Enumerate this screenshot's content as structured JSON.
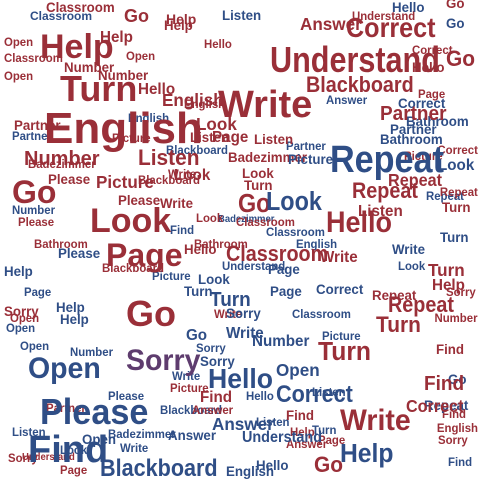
{
  "colors": {
    "red": "#9a2f38",
    "blue": "#2f4e86",
    "purple": "#5e3c6e",
    "background": "#ffffff"
  },
  "vocabulary": [
    "Help",
    "Go",
    "Turn",
    "English",
    "Write",
    "Understand",
    "Correct",
    "Repeat",
    "Number",
    "Listen",
    "Look",
    "Page",
    "Hello",
    "Classroom",
    "Picture",
    "Please",
    "Sorry",
    "Open",
    "Find",
    "Blackboard",
    "Answer",
    "Partner",
    "Bathroom",
    "Badezimmer"
  ],
  "words": [
    {
      "text": "English",
      "color": "red"
    },
    {
      "text": "Understand",
      "color": "red"
    },
    {
      "text": "Repeat",
      "color": "blue"
    },
    {
      "text": "Turn",
      "color": "red"
    },
    {
      "text": "Write",
      "color": "red"
    },
    {
      "text": "Help",
      "color": "red"
    },
    {
      "text": "Correct",
      "color": "red"
    },
    {
      "text": "Number",
      "color": "red"
    },
    {
      "text": "Go",
      "color": "red"
    },
    {
      "text": "Look",
      "color": "red"
    },
    {
      "text": "Page",
      "color": "red"
    },
    {
      "text": "Hello",
      "color": "red"
    },
    {
      "text": "Classroom",
      "color": "red"
    },
    {
      "text": "Go",
      "color": "red"
    },
    {
      "text": "Sorry",
      "color": "purple"
    },
    {
      "text": "Please",
      "color": "blue"
    },
    {
      "text": "Open",
      "color": "blue"
    },
    {
      "text": "Find",
      "color": "blue"
    },
    {
      "text": "Blackboard",
      "color": "blue"
    },
    {
      "text": "Write",
      "color": "red"
    },
    {
      "text": "Hello",
      "color": "blue"
    },
    {
      "text": "Turn",
      "color": "red"
    },
    {
      "text": "Correct",
      "color": "blue"
    },
    {
      "text": "Listen",
      "color": "red"
    },
    {
      "text": "Picture",
      "color": "red"
    },
    {
      "text": "Answer",
      "color": "blue"
    },
    {
      "text": "Understand",
      "color": "blue"
    },
    {
      "text": "Help",
      "color": "blue"
    },
    {
      "text": "Go",
      "color": "red"
    },
    {
      "text": "Partner",
      "color": "red"
    },
    {
      "text": "Blackboard",
      "color": "red"
    },
    {
      "text": "Look",
      "color": "blue"
    },
    {
      "text": "Repeat",
      "color": "red"
    },
    {
      "text": "Hello",
      "color": "red"
    },
    {
      "text": "Classroom",
      "color": "blue"
    },
    {
      "text": "Turn",
      "color": "blue"
    },
    {
      "text": "Open",
      "color": "blue"
    },
    {
      "text": "Find",
      "color": "red"
    },
    {
      "text": "Write",
      "color": "blue"
    },
    {
      "text": "Help",
      "color": "red"
    },
    {
      "text": "Repeat",
      "color": "red"
    },
    {
      "text": "Look",
      "color": "red"
    },
    {
      "text": "Page",
      "color": "red"
    },
    {
      "text": "Turn",
      "color": "red"
    },
    {
      "text": "Listen",
      "color": "red"
    },
    {
      "text": "Write",
      "color": "red"
    },
    {
      "text": "Number",
      "color": "red"
    },
    {
      "text": "Picture",
      "color": "blue"
    },
    {
      "text": "Bathroom",
      "color": "blue"
    },
    {
      "text": "Partner",
      "color": "blue"
    },
    {
      "text": "English",
      "color": "red"
    },
    {
      "text": "Please",
      "color": "red"
    },
    {
      "text": "Sorry",
      "color": "red"
    },
    {
      "text": "Open",
      "color": "red"
    },
    {
      "text": "Help",
      "color": "red"
    },
    {
      "text": "Correct",
      "color": "blue"
    },
    {
      "text": "Answer",
      "color": "red"
    },
    {
      "text": "Classroom",
      "color": "red"
    },
    {
      "text": "Badezimmer",
      "color": "red"
    },
    {
      "text": "Blackboard",
      "color": "red"
    },
    {
      "text": "Listen",
      "color": "blue"
    },
    {
      "text": "Hello",
      "color": "blue"
    },
    {
      "text": "Look",
      "color": "blue"
    },
    {
      "text": "Go",
      "color": "blue"
    },
    {
      "text": "Page",
      "color": "blue"
    },
    {
      "text": "Sorry",
      "color": "blue"
    },
    {
      "text": "Open",
      "color": "blue"
    },
    {
      "text": "Picture",
      "color": "blue"
    },
    {
      "text": "Number",
      "color": "blue"
    },
    {
      "text": "Find",
      "color": "red"
    },
    {
      "text": "Turn",
      "color": "red"
    },
    {
      "text": "Repeat",
      "color": "red"
    },
    {
      "text": "Help",
      "color": "red"
    },
    {
      "text": "Write",
      "color": "blue"
    },
    {
      "text": "Look",
      "color": "blue"
    },
    {
      "text": "English",
      "color": "blue"
    },
    {
      "text": "Hello",
      "color": "red"
    },
    {
      "text": "Go",
      "color": "red"
    },
    {
      "text": "Understand",
      "color": "red"
    },
    {
      "text": "Correct",
      "color": "red"
    },
    {
      "text": "Sorry",
      "color": "red"
    },
    {
      "text": "Page",
      "color": "red"
    },
    {
      "text": "Please",
      "color": "blue"
    },
    {
      "text": "Listen",
      "color": "blue"
    },
    {
      "text": "Answer",
      "color": "blue"
    },
    {
      "text": "Partner",
      "color": "red"
    },
    {
      "text": "Bathroom",
      "color": "red"
    },
    {
      "text": "Picture",
      "color": "red"
    },
    {
      "text": "Classroom",
      "color": "blue"
    },
    {
      "text": "Badezimmer",
      "color": "blue"
    },
    {
      "text": "Blackboard",
      "color": "blue"
    },
    {
      "text": "Open",
      "color": "red"
    },
    {
      "text": "Find",
      "color": "blue"
    },
    {
      "text": "Number",
      "color": "red"
    },
    {
      "text": "Turn",
      "color": "blue"
    },
    {
      "text": "Help",
      "color": "blue"
    },
    {
      "text": "Go",
      "color": "red"
    },
    {
      "text": "Look",
      "color": "red"
    },
    {
      "text": "Write",
      "color": "red"
    },
    {
      "text": "Repeat",
      "color": "blue"
    },
    {
      "text": "English",
      "color": "red"
    },
    {
      "text": "Sorry",
      "color": "blue"
    },
    {
      "text": "Hello",
      "color": "red"
    },
    {
      "text": "Listen",
      "color": "red"
    },
    {
      "text": "Correct",
      "color": "red"
    },
    {
      "text": "Page",
      "color": "blue"
    },
    {
      "text": "Please",
      "color": "red"
    },
    {
      "text": "Open",
      "color": "red"
    },
    {
      "text": "Answer",
      "color": "red"
    },
    {
      "text": "Picture",
      "color": "blue"
    },
    {
      "text": "Partner",
      "color": "blue"
    },
    {
      "text": "Find",
      "color": "red"
    },
    {
      "text": "Understand",
      "color": "blue"
    },
    {
      "text": "Classroom",
      "color": "red"
    },
    {
      "text": "Turn",
      "color": "red"
    },
    {
      "text": "Help",
      "color": "blue"
    },
    {
      "text": "Go",
      "color": "blue"
    },
    {
      "text": "Bathroom",
      "color": "blue"
    },
    {
      "text": "Number",
      "color": "blue"
    },
    {
      "text": "Look",
      "color": "red"
    },
    {
      "text": "Write",
      "color": "blue"
    },
    {
      "text": "Repeat",
      "color": "red"
    },
    {
      "text": "Hello",
      "color": "blue"
    },
    {
      "text": "English",
      "color": "blue"
    },
    {
      "text": "Sorry",
      "color": "red"
    },
    {
      "text": "Badezimmer",
      "color": "red"
    },
    {
      "text": "Listen",
      "color": "blue"
    },
    {
      "text": "Page",
      "color": "red"
    },
    {
      "text": "Correct",
      "color": "blue"
    },
    {
      "text": "Blackboard",
      "color": "red"
    },
    {
      "text": "Please",
      "color": "blue"
    },
    {
      "text": "Open",
      "color": "blue"
    },
    {
      "text": "Find",
      "color": "red"
    },
    {
      "text": "Go",
      "color": "red"
    },
    {
      "text": "Help",
      "color": "red"
    },
    {
      "text": "Turn",
      "color": "blue"
    },
    {
      "text": "Picture",
      "color": "red"
    },
    {
      "text": "Answer",
      "color": "blue"
    },
    {
      "text": "Partner",
      "color": "red"
    },
    {
      "text": "Write",
      "color": "red"
    },
    {
      "text": "Look",
      "color": "blue"
    },
    {
      "text": "Classroom",
      "color": "red"
    },
    {
      "text": "Number",
      "color": "red"
    },
    {
      "text": "Hello",
      "color": "red"
    },
    {
      "text": "Repeat",
      "color": "blue"
    },
    {
      "text": "Understand",
      "color": "red"
    },
    {
      "text": "English",
      "color": "red"
    },
    {
      "text": "Sorry",
      "color": "blue"
    },
    {
      "text": "Listen",
      "color": "red"
    },
    {
      "text": "Bathroom",
      "color": "red"
    },
    {
      "text": "Go",
      "color": "blue"
    },
    {
      "text": "Open",
      "color": "red"
    },
    {
      "text": "Page",
      "color": "blue"
    },
    {
      "text": "Help",
      "color": "blue"
    },
    {
      "text": "Find",
      "color": "blue"
    },
    {
      "text": "Correct",
      "color": "red"
    },
    {
      "text": "Please",
      "color": "red"
    },
    {
      "text": "Turn",
      "color": "red"
    },
    {
      "text": "Write",
      "color": "blue"
    },
    {
      "text": "Look",
      "color": "red"
    },
    {
      "text": "Blackboard",
      "color": "blue"
    },
    {
      "text": "Picture",
      "color": "red"
    },
    {
      "text": "Hello",
      "color": "blue"
    },
    {
      "text": "Answer",
      "color": "red"
    },
    {
      "text": "Repeat",
      "color": "red"
    },
    {
      "text": "English",
      "color": "blue"
    },
    {
      "text": "Number",
      "color": "blue"
    },
    {
      "text": "Classroom",
      "color": "blue"
    },
    {
      "text": "Sorry",
      "color": "red"
    },
    {
      "text": "Partner",
      "color": "blue"
    },
    {
      "text": "Go",
      "color": "red"
    },
    {
      "text": "Listen",
      "color": "blue"
    },
    {
      "text": "Help",
      "color": "red"
    },
    {
      "text": "Open",
      "color": "blue"
    },
    {
      "text": "Badezimmer",
      "color": "blue"
    },
    {
      "text": "Page",
      "color": "red"
    },
    {
      "text": "Turn",
      "color": "blue"
    },
    {
      "text": "Find",
      "color": "red"
    },
    {
      "text": "Look",
      "color": "blue"
    },
    {
      "text": "Write",
      "color": "red"
    }
  ]
}
